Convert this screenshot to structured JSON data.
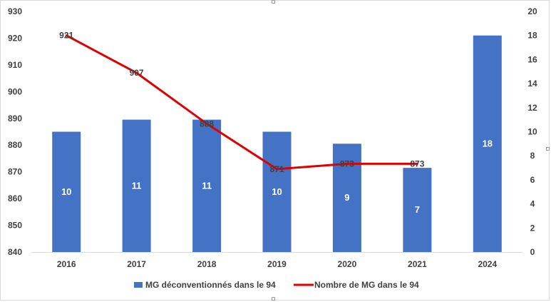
{
  "chart_data": {
    "type": "bar",
    "categories": [
      "2016",
      "2017",
      "2018",
      "2019",
      "2020",
      "2021",
      "2024"
    ],
    "series": [
      {
        "name": "MG déconventionnés dans le 94",
        "type": "bar",
        "axis": "right",
        "values": [
          10,
          11,
          11,
          10,
          9,
          7,
          18
        ],
        "labels": [
          "10",
          "11",
          "11",
          "10",
          "9",
          "7",
          "18"
        ],
        "color": "#4472C4"
      },
      {
        "name": "Nombre de MG dans le 94",
        "type": "line",
        "axis": "left",
        "values": [
          921,
          907,
          888,
          871,
          873,
          873,
          null
        ],
        "labels": [
          "921",
          "907",
          "888",
          "871",
          "873",
          "873",
          ""
        ],
        "color": "#E00000"
      }
    ],
    "y_left": {
      "min": 840,
      "max": 930,
      "step": 10,
      "ticks": [
        "840",
        "850",
        "860",
        "870",
        "880",
        "890",
        "900",
        "910",
        "920",
        "930"
      ]
    },
    "y_right": {
      "min": 0,
      "max": 20,
      "step": 2,
      "ticks": [
        "0",
        "2",
        "4",
        "6",
        "8",
        "10",
        "12",
        "14",
        "16",
        "18",
        "20"
      ]
    },
    "grid": false,
    "legend_position": "bottom",
    "title": "",
    "xlabel": "",
    "ylabel": ""
  }
}
